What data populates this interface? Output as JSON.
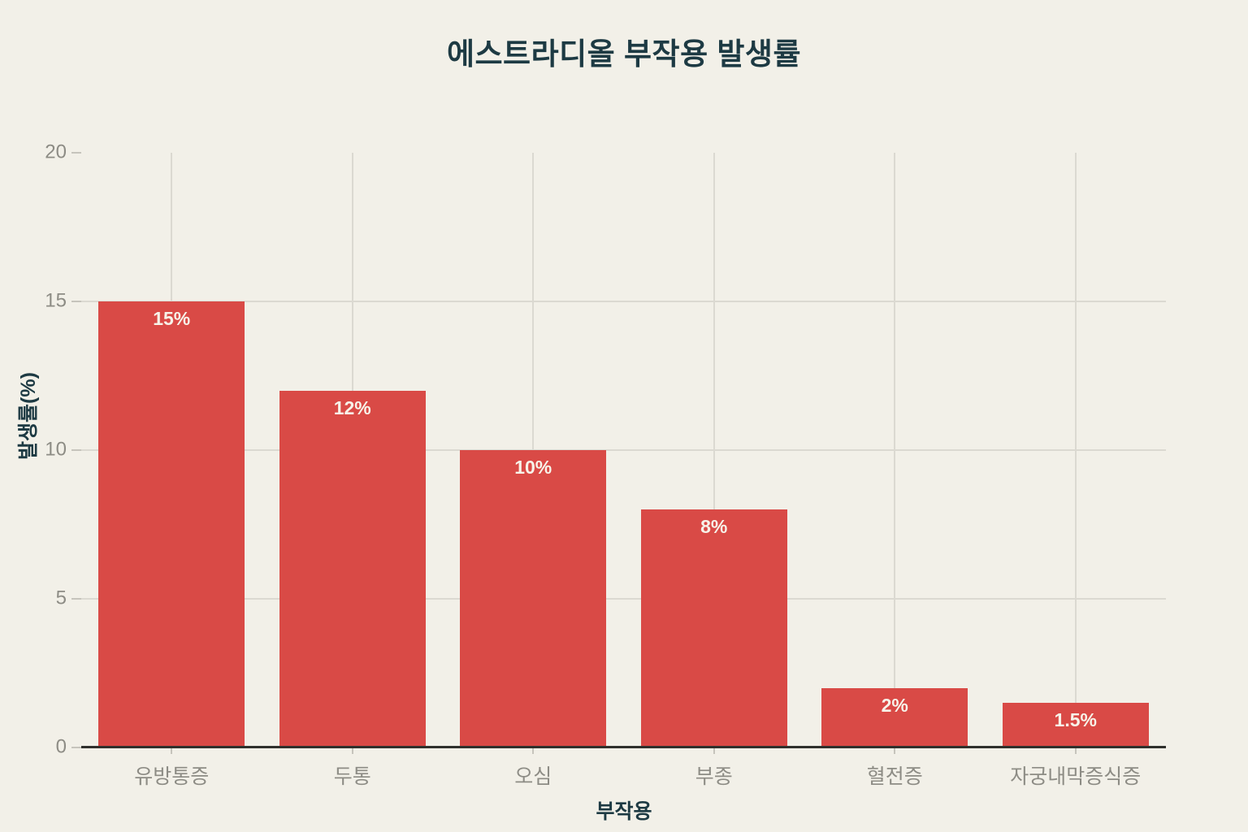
{
  "chart_data": {
    "type": "bar",
    "title": "에스트라디올 부작용 발생률",
    "xlabel": "부작용",
    "ylabel": "발생률(%)",
    "categories": [
      "유방통증",
      "두통",
      "오심",
      "부종",
      "혈전증",
      "자궁내막증식증"
    ],
    "values": [
      15,
      12,
      10,
      8,
      2,
      1.5
    ],
    "bar_labels": [
      "15%",
      "12%",
      "10%",
      "8%",
      "2%",
      "1.5%"
    ],
    "ylim": [
      0,
      20
    ],
    "yticks": [
      0,
      5,
      10,
      15,
      20
    ],
    "legend": "none",
    "grid": {
      "horizontal": true,
      "vertical_at_category_centers": true
    },
    "colors": {
      "background": "#f2f0e8",
      "bar": "#d94a46",
      "bar_label": "#f7f3e9",
      "title": "#1d3a43",
      "axis_title": "#1d3a43",
      "tick_label": "#8d8c85",
      "gridline": "#dbd9d1",
      "tick_mark": "#c6c4bc",
      "axis_line": "#30302c"
    }
  }
}
